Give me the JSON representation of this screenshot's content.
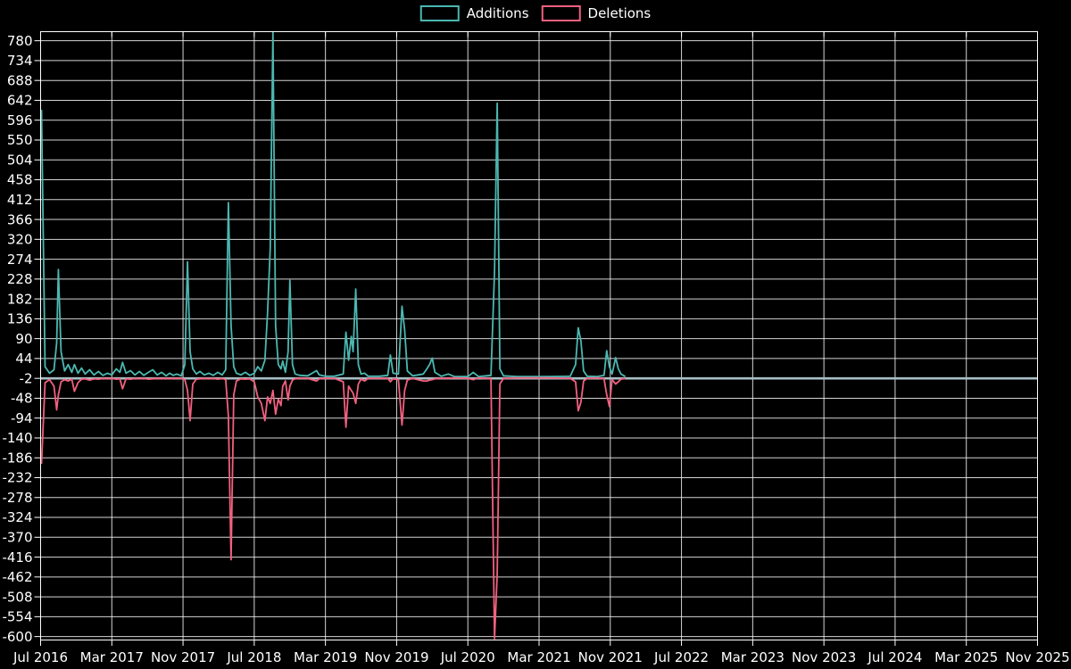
{
  "legend": {
    "items": [
      {
        "label": "Additions",
        "color": "#4bb8b1"
      },
      {
        "label": "Deletions",
        "color": "#f2607f"
      }
    ]
  },
  "colors": {
    "background": "#000000",
    "grid": "#f2f2f2",
    "border": "#ffffff",
    "text": "#ffffff",
    "zero_line": "#a8bfc6",
    "additions": "#4bb8b1",
    "deletions": "#f2607f"
  },
  "chart_data": {
    "type": "line",
    "title": "",
    "xlabel": "",
    "ylabel": "",
    "grid": true,
    "legend_position": "top-center",
    "x_unit": "months since Jul 2016",
    "xlim": [
      0,
      112
    ],
    "ylim": [
      -608,
      801
    ],
    "zero_line_value": -2,
    "y_ticks": [
      780,
      734,
      688,
      642,
      596,
      550,
      504,
      458,
      412,
      366,
      320,
      274,
      228,
      182,
      136,
      90,
      44,
      -2,
      -48,
      -94,
      -140,
      -186,
      -232,
      -278,
      -324,
      -370,
      -416,
      -462,
      -508,
      -554,
      -600
    ],
    "x_ticks": [
      {
        "label": "Jul 2016",
        "m": 0
      },
      {
        "label": "Mar 2017",
        "m": 8
      },
      {
        "label": "Nov 2017",
        "m": 16
      },
      {
        "label": "Jul 2018",
        "m": 24
      },
      {
        "label": "Mar 2019",
        "m": 32
      },
      {
        "label": "Nov 2019",
        "m": 40
      },
      {
        "label": "Jul 2020",
        "m": 48
      },
      {
        "label": "Mar 2021",
        "m": 56
      },
      {
        "label": "Nov 2021",
        "m": 64
      },
      {
        "label": "Jul 2022",
        "m": 72
      },
      {
        "label": "Mar 2023",
        "m": 80
      },
      {
        "label": "Nov 2023",
        "m": 88
      },
      {
        "label": "Jul 2024",
        "m": 96
      },
      {
        "label": "Mar 2025",
        "m": 104
      },
      {
        "label": "Nov 2025",
        "m": 112
      }
    ],
    "series_names": [
      "Additions",
      "Deletions"
    ],
    "points_format": [
      "month",
      "additions",
      "deletions"
    ],
    "points": [
      [
        0.1,
        620,
        -200
      ],
      [
        0.5,
        25,
        -12
      ],
      [
        1.0,
        10,
        -5
      ],
      [
        1.5,
        18,
        -20
      ],
      [
        1.8,
        80,
        -75
      ],
      [
        2.0,
        250,
        -40
      ],
      [
        2.3,
        60,
        -10
      ],
      [
        2.7,
        15,
        -5
      ],
      [
        3.1,
        30,
        -8
      ],
      [
        3.5,
        12,
        -4
      ],
      [
        3.8,
        30,
        -32
      ],
      [
        4.2,
        10,
        -12
      ],
      [
        4.6,
        22,
        -4
      ],
      [
        5.0,
        8,
        -3
      ],
      [
        5.5,
        18,
        -6
      ],
      [
        6.0,
        6,
        -3
      ],
      [
        6.5,
        14,
        -4
      ],
      [
        7.0,
        5,
        -2
      ],
      [
        7.5,
        10,
        -3
      ],
      [
        8.0,
        6,
        -2
      ],
      [
        8.5,
        20,
        -4
      ],
      [
        8.9,
        12,
        -3
      ],
      [
        9.2,
        35,
        -26
      ],
      [
        9.6,
        10,
        -3
      ],
      [
        10.1,
        16,
        -4
      ],
      [
        10.6,
        6,
        -2
      ],
      [
        11.1,
        14,
        -3
      ],
      [
        11.6,
        5,
        -2
      ],
      [
        12.1,
        12,
        -4
      ],
      [
        12.6,
        18,
        -3
      ],
      [
        13.1,
        6,
        -2
      ],
      [
        13.6,
        12,
        -3
      ],
      [
        14.1,
        4,
        -2
      ],
      [
        14.5,
        10,
        -3
      ],
      [
        14.9,
        5,
        -2
      ],
      [
        15.3,
        8,
        -2
      ],
      [
        15.8,
        4,
        -2
      ],
      [
        16.2,
        30,
        -5
      ],
      [
        16.5,
        268,
        -30
      ],
      [
        16.8,
        60,
        -100
      ],
      [
        17.1,
        20,
        -15
      ],
      [
        17.5,
        8,
        -4
      ],
      [
        17.9,
        14,
        -3
      ],
      [
        18.4,
        6,
        -2
      ],
      [
        18.9,
        10,
        -3
      ],
      [
        19.4,
        5,
        -2
      ],
      [
        19.9,
        12,
        -4
      ],
      [
        20.4,
        6,
        -2
      ],
      [
        20.8,
        18,
        -5
      ],
      [
        21.1,
        405,
        -90
      ],
      [
        21.4,
        120,
        -422
      ],
      [
        21.7,
        25,
        -40
      ],
      [
        22.0,
        10,
        -8
      ],
      [
        22.5,
        6,
        -3
      ],
      [
        23.0,
        12,
        -4
      ],
      [
        23.5,
        5,
        -3
      ],
      [
        24.0,
        10,
        -10
      ],
      [
        24.4,
        25,
        -45
      ],
      [
        24.8,
        15,
        -60
      ],
      [
        25.2,
        40,
        -100
      ],
      [
        25.5,
        150,
        -45
      ],
      [
        25.8,
        300,
        -60
      ],
      [
        26.1,
        800,
        -30
      ],
      [
        26.4,
        120,
        -85
      ],
      [
        26.7,
        30,
        -50
      ],
      [
        27.0,
        20,
        -65
      ],
      [
        27.2,
        38,
        -20
      ],
      [
        27.5,
        12,
        -8
      ],
      [
        27.8,
        60,
        -52
      ],
      [
        28.0,
        225,
        -20
      ],
      [
        28.3,
        30,
        -6
      ],
      [
        28.6,
        8,
        -3
      ],
      [
        29.1,
        5,
        -2
      ],
      [
        30.0,
        4,
        -2
      ],
      [
        31.0,
        16,
        -8
      ],
      [
        31.3,
        6,
        -3
      ],
      [
        32.0,
        3,
        -2
      ],
      [
        33.0,
        3,
        -2
      ],
      [
        34.0,
        8,
        -10
      ],
      [
        34.3,
        105,
        -115
      ],
      [
        34.6,
        40,
        -20
      ],
      [
        34.9,
        95,
        -30
      ],
      [
        35.1,
        60,
        -36
      ],
      [
        35.4,
        205,
        -60
      ],
      [
        35.7,
        30,
        -15
      ],
      [
        36.0,
        8,
        -4
      ],
      [
        36.4,
        10,
        -8
      ],
      [
        36.8,
        3,
        -2
      ],
      [
        38.0,
        3,
        -2
      ],
      [
        39.0,
        5,
        -2
      ],
      [
        39.3,
        52,
        -10
      ],
      [
        39.6,
        10,
        -3
      ],
      [
        40.2,
        8,
        -5
      ],
      [
        40.6,
        165,
        -110
      ],
      [
        40.9,
        110,
        -30
      ],
      [
        41.2,
        15,
        -6
      ],
      [
        41.8,
        4,
        -2
      ],
      [
        43.0,
        8,
        -8
      ],
      [
        43.4,
        20,
        -8
      ],
      [
        43.7,
        30,
        -6
      ],
      [
        44.0,
        45,
        -5
      ],
      [
        44.3,
        12,
        -3
      ],
      [
        45.0,
        3,
        -2
      ],
      [
        45.8,
        8,
        -2
      ],
      [
        46.5,
        2,
        -1
      ],
      [
        48.0,
        2,
        -2
      ],
      [
        48.6,
        12,
        -5
      ],
      [
        49.2,
        2,
        -1
      ],
      [
        50.6,
        5,
        -3
      ],
      [
        51.0,
        245,
        -605
      ],
      [
        51.3,
        635,
        -455
      ],
      [
        51.6,
        20,
        -15
      ],
      [
        52.0,
        4,
        -2
      ],
      [
        53.5,
        2,
        -1
      ],
      [
        55.0,
        2,
        -1
      ],
      [
        57.0,
        2,
        -1
      ],
      [
        59.5,
        3,
        -2
      ],
      [
        60.1,
        30,
        -10
      ],
      [
        60.4,
        115,
        -77
      ],
      [
        60.7,
        84,
        -57
      ],
      [
        61.0,
        15,
        -8
      ],
      [
        61.4,
        3,
        -2
      ],
      [
        62.5,
        2,
        -1
      ],
      [
        63.3,
        5,
        -3
      ],
      [
        63.6,
        62,
        -40
      ],
      [
        63.9,
        25,
        -67
      ],
      [
        64.2,
        8,
        -5
      ],
      [
        64.6,
        46,
        -15
      ],
      [
        64.9,
        20,
        -10
      ],
      [
        65.2,
        8,
        -4
      ],
      [
        65.7,
        2,
        -2
      ]
    ]
  }
}
